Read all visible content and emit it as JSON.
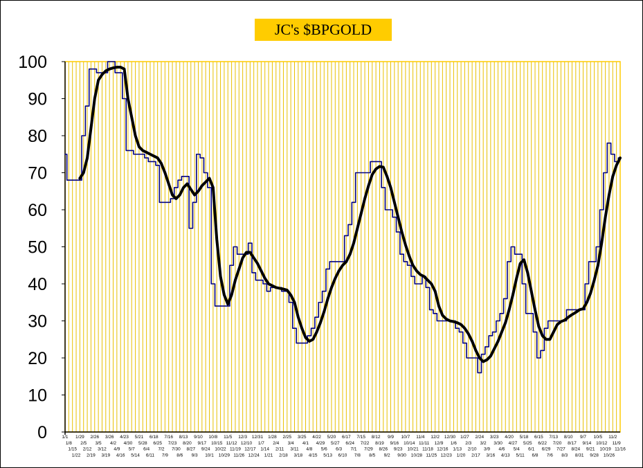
{
  "chart_data": {
    "type": "line",
    "title": "JC's $BPGOLD",
    "xlabel": "",
    "ylabel": "",
    "ylim": [
      0,
      100
    ],
    "yticks": [
      0,
      10,
      20,
      30,
      40,
      50,
      60,
      70,
      80,
      90,
      100
    ],
    "grid": "vertical gridlines at every category",
    "colors": {
      "plot_border": "#FFCC00",
      "gridlines": "#E8C000",
      "title_background": "#FFCC00",
      "raw_series": "#000080",
      "smoothed_series": "#000000"
    },
    "categories": [
      "1/1",
      "1/8",
      "1/15",
      "1/22",
      "1/29",
      "2/5",
      "2/12",
      "2/19",
      "2/26",
      "3/5",
      "3/12",
      "3/19",
      "3/26",
      "4/2",
      "4/9",
      "4/16",
      "4/23",
      "4/30",
      "5/7",
      "5/14",
      "5/21",
      "5/28",
      "6/4",
      "6/11",
      "6/18",
      "6/25",
      "7/2",
      "7/9",
      "7/16",
      "7/23",
      "7/30",
      "8/6",
      "8/13",
      "8/20",
      "8/27",
      "9/3",
      "9/10",
      "9/17",
      "9/24",
      "10/1",
      "10/8",
      "10/15",
      "10/22",
      "10/29",
      "11/5",
      "11/12",
      "11/19",
      "11/26",
      "12/3",
      "12/10",
      "12/17",
      "12/24",
      "12/31",
      "1/7",
      "1/14",
      "1/21",
      "1/28",
      "2/4",
      "2/11",
      "2/18",
      "2/25",
      "3/4",
      "3/11",
      "3/18",
      "3/25",
      "4/1",
      "4/8",
      "4/15",
      "4/22",
      "4/29",
      "5/6",
      "5/13",
      "5/20",
      "5/27",
      "6/3",
      "6/10",
      "6/17",
      "6/24",
      "7/1",
      "7/8",
      "7/15",
      "7/22",
      "7/29",
      "8/5",
      "8/12",
      "8/19",
      "8/26",
      "9/2",
      "9/9",
      "9/16",
      "9/23",
      "9/30",
      "10/7",
      "10/14",
      "10/21",
      "10/28",
      "11/4",
      "11/11",
      "11/18",
      "11/25",
      "12/2",
      "12/9",
      "12/16",
      "12/23",
      "12/30",
      "1/6",
      "1/13",
      "1/20",
      "1/27",
      "2/3",
      "2/10",
      "2/17",
      "2/24",
      "3/2",
      "3/9",
      "3/16",
      "3/23",
      "3/30",
      "4/6",
      "4/13",
      "4/20",
      "4/27",
      "5/4",
      "5/11",
      "5/18",
      "5/25",
      "6/1",
      "6/8",
      "6/15",
      "6/22",
      "6/29",
      "7/6",
      "7/13",
      "7/20",
      "7/27",
      "8/3",
      "8/10",
      "8/17",
      "8/24",
      "8/31",
      "9/7",
      "9/14",
      "9/21",
      "9/28",
      "10/5",
      "10/12",
      "10/19",
      "10/26",
      "11/2",
      "11/9",
      "11/16"
    ],
    "series": [
      {
        "values": [
          75,
          68,
          68,
          68,
          68,
          80,
          88,
          98,
          98,
          97,
          97,
          97,
          100,
          100,
          97,
          97,
          90,
          76,
          76,
          75,
          75,
          75,
          74,
          73,
          73,
          72,
          62,
          62,
          62,
          63,
          66,
          68,
          69,
          69,
          55,
          62,
          75,
          74,
          70,
          66,
          40,
          34,
          34,
          34,
          34,
          45,
          50,
          48,
          48,
          48,
          51,
          43,
          41,
          41,
          40,
          38,
          39,
          39,
          39,
          38,
          38,
          35,
          28,
          24,
          24,
          24,
          26,
          28,
          31,
          35,
          38,
          44,
          46,
          46,
          46,
          46,
          53,
          56,
          62,
          70,
          70,
          70,
          70,
          73,
          73,
          73,
          66,
          60,
          60,
          58,
          54,
          48,
          46,
          45,
          42,
          40,
          40,
          42,
          39,
          33,
          32,
          30,
          30,
          30,
          30,
          30,
          28,
          27,
          24,
          20,
          20,
          20,
          16,
          21,
          23,
          26,
          27,
          30,
          32,
          36,
          46,
          50,
          48,
          48,
          40,
          32,
          32,
          27,
          20,
          22,
          28,
          30,
          30,
          30,
          30,
          30,
          33,
          33,
          33,
          33,
          33,
          40,
          46,
          46,
          50,
          60,
          70,
          78,
          75,
          73,
          74
        ]
      },
      {
        "values": [
          null,
          null,
          null,
          null,
          68.5,
          70,
          74,
          82,
          90,
          95,
          96.5,
          97.5,
          98,
          98.3,
          98.5,
          98.5,
          98,
          90,
          85,
          80,
          77,
          76,
          75.5,
          75,
          74.5,
          74,
          72.5,
          70,
          67,
          64,
          63,
          64,
          66,
          67,
          65.5,
          64,
          65,
          66.5,
          67.5,
          68.5,
          66,
          52,
          42,
          37,
          34.5,
          37,
          41,
          44,
          47,
          48.5,
          48.5,
          47,
          45.5,
          43.5,
          41.5,
          40,
          39.5,
          39,
          38.8,
          38.6,
          38.3,
          37,
          35,
          31,
          28,
          25.5,
          24.5,
          25,
          27,
          29.5,
          32.5,
          36,
          39,
          41.5,
          43.5,
          45,
          46,
          48,
          51,
          55,
          59,
          63,
          66.5,
          69.5,
          71,
          71.7,
          71.5,
          69,
          66,
          62,
          58,
          54,
          50.5,
          47.5,
          45,
          43.5,
          42.5,
          42,
          41,
          40,
          38,
          34,
          31.5,
          30.5,
          30,
          29.8,
          29.5,
          29,
          28,
          26.5,
          24.5,
          22,
          20,
          19,
          19.5,
          20.5,
          22.5,
          24.5,
          27,
          29.5,
          33,
          37,
          41.5,
          45.5,
          46.5,
          43,
          38,
          33,
          28.5,
          26,
          25,
          25,
          27,
          29,
          29.8,
          30.2,
          31,
          31.7,
          32.3,
          33,
          33.3,
          35,
          37.5,
          41,
          45,
          51,
          58,
          64,
          69,
          72,
          74
        ]
      }
    ]
  }
}
